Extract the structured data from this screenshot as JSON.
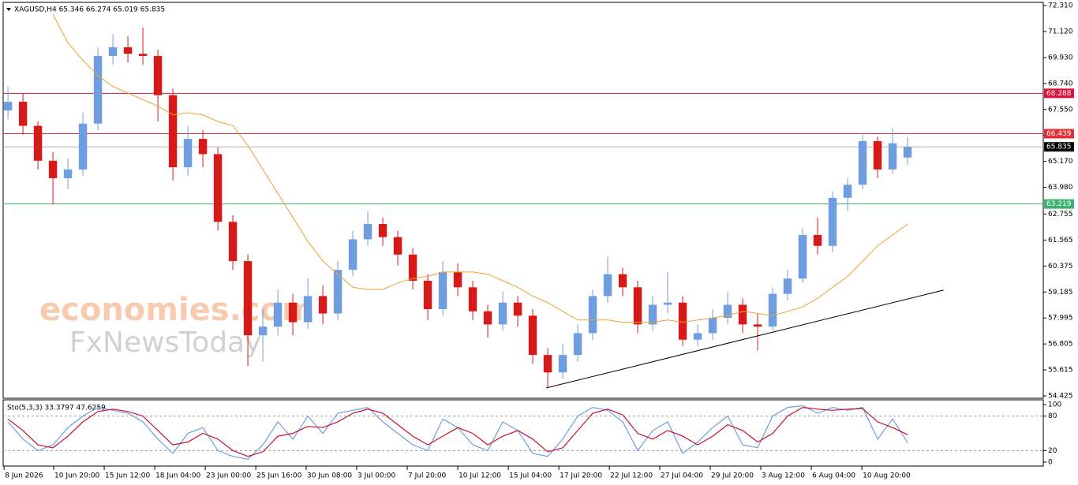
{
  "chart_data": [
    {
      "type": "candlestick",
      "title": "XAGUSD,H4 65.346 66.274 65.019 65.835",
      "open": [
        67.5,
        67.9,
        66.8,
        65.2,
        64.4,
        64.8,
        66.9,
        70.0,
        70.4,
        70.1,
        70.0,
        68.2,
        64.9,
        66.2,
        65.5,
        62.4,
        60.6,
        57.2,
        57.6,
        58.7,
        57.8,
        59.0,
        58.2,
        60.2,
        61.6,
        62.3,
        61.7,
        60.9,
        59.7,
        58.4,
        60.1,
        59.4,
        58.3,
        57.7,
        58.7,
        58.1,
        56.3,
        55.5,
        56.3,
        57.3,
        59.0,
        60.0,
        59.4,
        57.7,
        58.6,
        58.7,
        57.0,
        57.3,
        58.0,
        58.6,
        57.7,
        57.6,
        59.1,
        59.8,
        61.8,
        61.3,
        63.5,
        64.1,
        66.1,
        64.8,
        65.346
      ],
      "high": [
        68.6,
        68.3,
        67.0,
        65.6,
        65.3,
        67.4,
        70.4,
        71.0,
        70.9,
        71.3,
        70.3,
        68.5,
        66.8,
        66.6,
        65.8,
        62.7,
        60.9,
        58.4,
        59.3,
        59.1,
        59.8,
        59.5,
        60.6,
        62.0,
        62.9,
        62.6,
        62.0,
        61.2,
        60.0,
        60.6,
        60.5,
        59.7,
        58.6,
        59.2,
        59.0,
        58.4,
        56.6,
        56.8,
        57.7,
        59.3,
        60.8,
        60.3,
        59.7,
        59.0,
        60.1,
        59.0,
        57.7,
        58.4,
        59.2,
        58.9,
        58.2,
        59.4,
        60.2,
        62.1,
        62.6,
        63.8,
        64.4,
        66.4,
        66.3,
        66.7,
        66.274
      ],
      "low": [
        67.1,
        66.4,
        64.8,
        63.2,
        63.9,
        64.5,
        66.6,
        69.6,
        69.7,
        69.6,
        67.0,
        64.3,
        64.5,
        64.9,
        62.0,
        60.2,
        55.8,
        56.0,
        57.2,
        57.2,
        57.5,
        57.7,
        57.9,
        59.9,
        61.3,
        61.3,
        60.4,
        59.3,
        57.9,
        58.1,
        59.0,
        57.9,
        57.1,
        57.4,
        57.6,
        55.9,
        54.8,
        55.2,
        56.0,
        57.0,
        58.7,
        59.0,
        57.3,
        57.4,
        58.2,
        56.7,
        56.7,
        57.0,
        57.7,
        57.3,
        56.5,
        57.4,
        58.8,
        59.6,
        60.9,
        61.0,
        62.9,
        63.9,
        64.4,
        64.6,
        65.019
      ],
      "close": [
        67.9,
        66.8,
        65.2,
        64.4,
        64.8,
        66.9,
        70.0,
        70.4,
        70.1,
        70.0,
        68.2,
        64.9,
        66.2,
        65.5,
        62.4,
        60.6,
        57.2,
        57.6,
        58.7,
        57.8,
        59.0,
        58.2,
        60.2,
        61.6,
        62.3,
        61.7,
        60.9,
        59.7,
        58.4,
        60.1,
        59.4,
        58.3,
        57.7,
        58.7,
        58.1,
        56.3,
        55.5,
        56.3,
        57.3,
        59.0,
        60.0,
        59.4,
        57.7,
        58.6,
        58.7,
        57.0,
        57.3,
        58.0,
        58.6,
        57.7,
        57.6,
        59.1,
        59.8,
        61.8,
        61.3,
        63.5,
        64.1,
        66.1,
        64.8,
        66.0,
        65.835
      ],
      "colors": {
        "up": "#6f9ee0",
        "down": "#d61a1a"
      },
      "lines": [
        {
          "color": "#f0a030",
          "values": [
            null,
            null,
            null,
            71.9,
            70.6,
            69.8,
            69.1,
            68.6,
            68.3,
            68.0,
            67.7,
            67.3,
            67.4,
            67.3,
            67.0,
            66.8,
            65.9,
            64.8,
            63.7,
            62.6,
            61.5,
            60.6,
            60.0,
            59.4,
            59.3,
            59.3,
            59.6,
            59.8,
            59.9,
            60.1,
            60.1,
            60.1,
            60.0,
            59.7,
            59.4,
            59.0,
            58.7,
            58.3,
            57.9,
            57.9,
            57.9,
            57.8,
            57.8,
            57.8,
            57.9,
            57.8,
            57.9,
            58.0,
            58.1,
            58.3,
            58.2,
            58.1,
            58.3,
            58.5,
            58.9,
            59.4,
            59.9,
            60.6,
            61.3,
            61.8,
            62.3
          ]
        }
      ],
      "levels": [
        {
          "value": 68.288,
          "color": "#dc143c"
        },
        {
          "value": 66.439,
          "color": "#e0303a"
        },
        {
          "value": 65.835,
          "color": "#000000"
        },
        {
          "value": 63.219,
          "color": "#3cb371"
        }
      ],
      "trendline": {
        "color": "#000000",
        "x": [
          35.9,
          62.4
        ],
        "y": [
          54.79,
          59.27
        ]
      },
      "ylim": [
        54.317,
        72.455
      ],
      "yticks": [
        {
          "value": 72.31,
          "label": "72.310"
        },
        {
          "value": 71.12,
          "label": "71.120"
        },
        {
          "value": 69.93,
          "label": "69.930"
        },
        {
          "value": 68.74,
          "label": "68.740"
        },
        {
          "value": 67.55,
          "label": "67.550"
        },
        {
          "value": 66.36,
          "label": "66.360"
        },
        {
          "value": 65.17,
          "label": "65.170"
        },
        {
          "value": 63.98,
          "label": "63.980"
        },
        {
          "value": 62.755,
          "label": "62.755"
        },
        {
          "value": 61.565,
          "label": "61.565"
        },
        {
          "value": 60.375,
          "label": "60.375"
        },
        {
          "value": 59.185,
          "label": "59.185"
        },
        {
          "value": 57.995,
          "label": "57.995"
        },
        {
          "value": 56.805,
          "label": "56.805"
        },
        {
          "value": 55.615,
          "label": "55.615"
        },
        {
          "value": 54.425,
          "label": "54.425"
        }
      ],
      "xlim": [
        -0.32,
        69.05
      ],
      "xticks": [
        {
          "value": -0.26,
          "label": "8 Jun 2026"
        },
        {
          "value": 3.05,
          "label": "10 Jun 20:00"
        },
        {
          "value": 6.42,
          "label": "15 Jun 12:00"
        },
        {
          "value": 9.79,
          "label": "18 Jun 04:00"
        },
        {
          "value": 13.16,
          "label": "23 Jun 00:00"
        },
        {
          "value": 16.53,
          "label": "25 Jun 16:00"
        },
        {
          "value": 19.89,
          "label": "30 Jun 08:00"
        },
        {
          "value": 23.26,
          "label": "3 Jul 00:00"
        },
        {
          "value": 26.63,
          "label": "7 Jul 20:00"
        },
        {
          "value": 30,
          "label": "10 Jul 12:00"
        },
        {
          "value": 33.37,
          "label": "15 Jul 04:00"
        },
        {
          "value": 36.74,
          "label": "17 Jul 20:00"
        },
        {
          "value": 40.11,
          "label": "22 Jul 12:00"
        },
        {
          "value": 43.47,
          "label": "27 Jul 04:00"
        },
        {
          "value": 46.84,
          "label": "29 Jul 20:00"
        },
        {
          "value": 50.21,
          "label": "3 Aug 12:00"
        },
        {
          "value": 53.58,
          "label": "6 Aug 04:00"
        },
        {
          "value": 56.95,
          "label": "10 Aug 20:00"
        }
      ],
      "watermark": [
        "economies.com",
        "FxNewsToday"
      ]
    },
    {
      "type": "line",
      "title": "Sto(5,3,3) 33.3797 47.6259",
      "series": [
        {
          "color": "#6f9ee0",
          "values": [
            70,
            40,
            20,
            30,
            60,
            80,
            95,
            90,
            85,
            70,
            40,
            15,
            50,
            60,
            20,
            10,
            5,
            30,
            70,
            40,
            80,
            50,
            85,
            90,
            95,
            70,
            50,
            30,
            20,
            75,
            60,
            30,
            20,
            70,
            55,
            15,
            10,
            40,
            80,
            95,
            90,
            70,
            20,
            55,
            70,
            15,
            35,
            60,
            80,
            30,
            25,
            80,
            95,
            98,
            85,
            95,
            90,
            95,
            40,
            75,
            33.38
          ]
        },
        {
          "color": "#c8102e",
          "values": [
            75,
            55,
            30,
            25,
            45,
            70,
            88,
            92,
            88,
            80,
            55,
            30,
            35,
            50,
            40,
            20,
            10,
            18,
            45,
            50,
            62,
            60,
            70,
            85,
            92,
            85,
            65,
            45,
            30,
            45,
            60,
            50,
            30,
            45,
            55,
            40,
            18,
            25,
            55,
            85,
            92,
            82,
            50,
            40,
            55,
            45,
            30,
            45,
            65,
            55,
            35,
            50,
            80,
            95,
            92,
            90,
            92,
            93,
            70,
            60,
            47.63
          ]
        }
      ],
      "levels": [
        80,
        20
      ],
      "ylim": [
        0,
        100
      ],
      "yticks": [
        100,
        80,
        20,
        0
      ]
    }
  ]
}
